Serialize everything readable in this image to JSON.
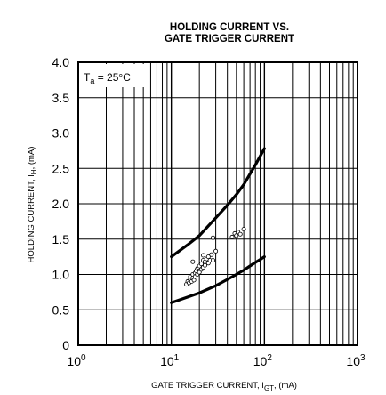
{
  "chart_data": {
    "type": "scatter",
    "title_line1": "HOLDING CURRENT VS.",
    "title_line2": "GATE TRIGGER CURRENT",
    "xlabel_main": "GATE TRIGGER CURRENT, I",
    "xlabel_sub": "GT",
    "xlabel_unit": ", (mA)",
    "ylabel_main": "HOLDING CURRENT, I",
    "ylabel_sub": "H",
    "ylabel_unit": ", (mA)",
    "annotation": {
      "main": "T",
      "sub": "a",
      "rest": " = 25°C"
    },
    "xscale": "log",
    "xlim": [
      1,
      1000
    ],
    "ylim": [
      0,
      4.0
    ],
    "grid": true,
    "x_ticks": [
      {
        "base": "10",
        "exp": "0"
      },
      {
        "base": "10",
        "exp": "1"
      },
      {
        "base": "10",
        "exp": "2"
      },
      {
        "base": "10",
        "exp": "3"
      }
    ],
    "y_ticks": [
      "0",
      "0.5",
      "1.0",
      "1.5",
      "2.0",
      "2.5",
      "3.0",
      "3.5",
      "4.0"
    ],
    "series": [
      {
        "kind": "curve",
        "x": [
          10,
          15,
          20,
          30,
          40,
          50,
          60,
          70,
          80,
          90,
          100
        ],
        "y": [
          1.25,
          1.42,
          1.55,
          1.8,
          1.98,
          2.13,
          2.27,
          2.42,
          2.55,
          2.67,
          2.78
        ]
      },
      {
        "kind": "curve",
        "x": [
          10,
          15,
          20,
          30,
          40,
          50,
          60,
          70,
          80,
          90,
          100
        ],
        "y": [
          0.6,
          0.68,
          0.74,
          0.84,
          0.93,
          1.0,
          1.06,
          1.12,
          1.17,
          1.21,
          1.25
        ]
      },
      {
        "kind": "points",
        "x": [
          14.5,
          15,
          15.5,
          16,
          16,
          16.5,
          17,
          17,
          17.5,
          18,
          18,
          18.5,
          19,
          19,
          19.5,
          20,
          20,
          21,
          21,
          22,
          22,
          23,
          23,
          24,
          25,
          25,
          26,
          27,
          28,
          30,
          17,
          22,
          28,
          45,
          48,
          50,
          52,
          55,
          60
        ],
        "y": [
          0.86,
          0.9,
          0.88,
          0.93,
          0.97,
          0.9,
          0.95,
          1.0,
          0.92,
          1.02,
          0.97,
          1.05,
          1.0,
          1.08,
          1.1,
          1.03,
          1.12,
          1.07,
          1.15,
          1.1,
          1.2,
          1.13,
          1.18,
          1.22,
          1.16,
          1.25,
          1.2,
          1.28,
          1.2,
          1.33,
          1.18,
          1.27,
          1.52,
          1.53,
          1.58,
          1.55,
          1.6,
          1.57,
          1.64
        ]
      }
    ]
  }
}
